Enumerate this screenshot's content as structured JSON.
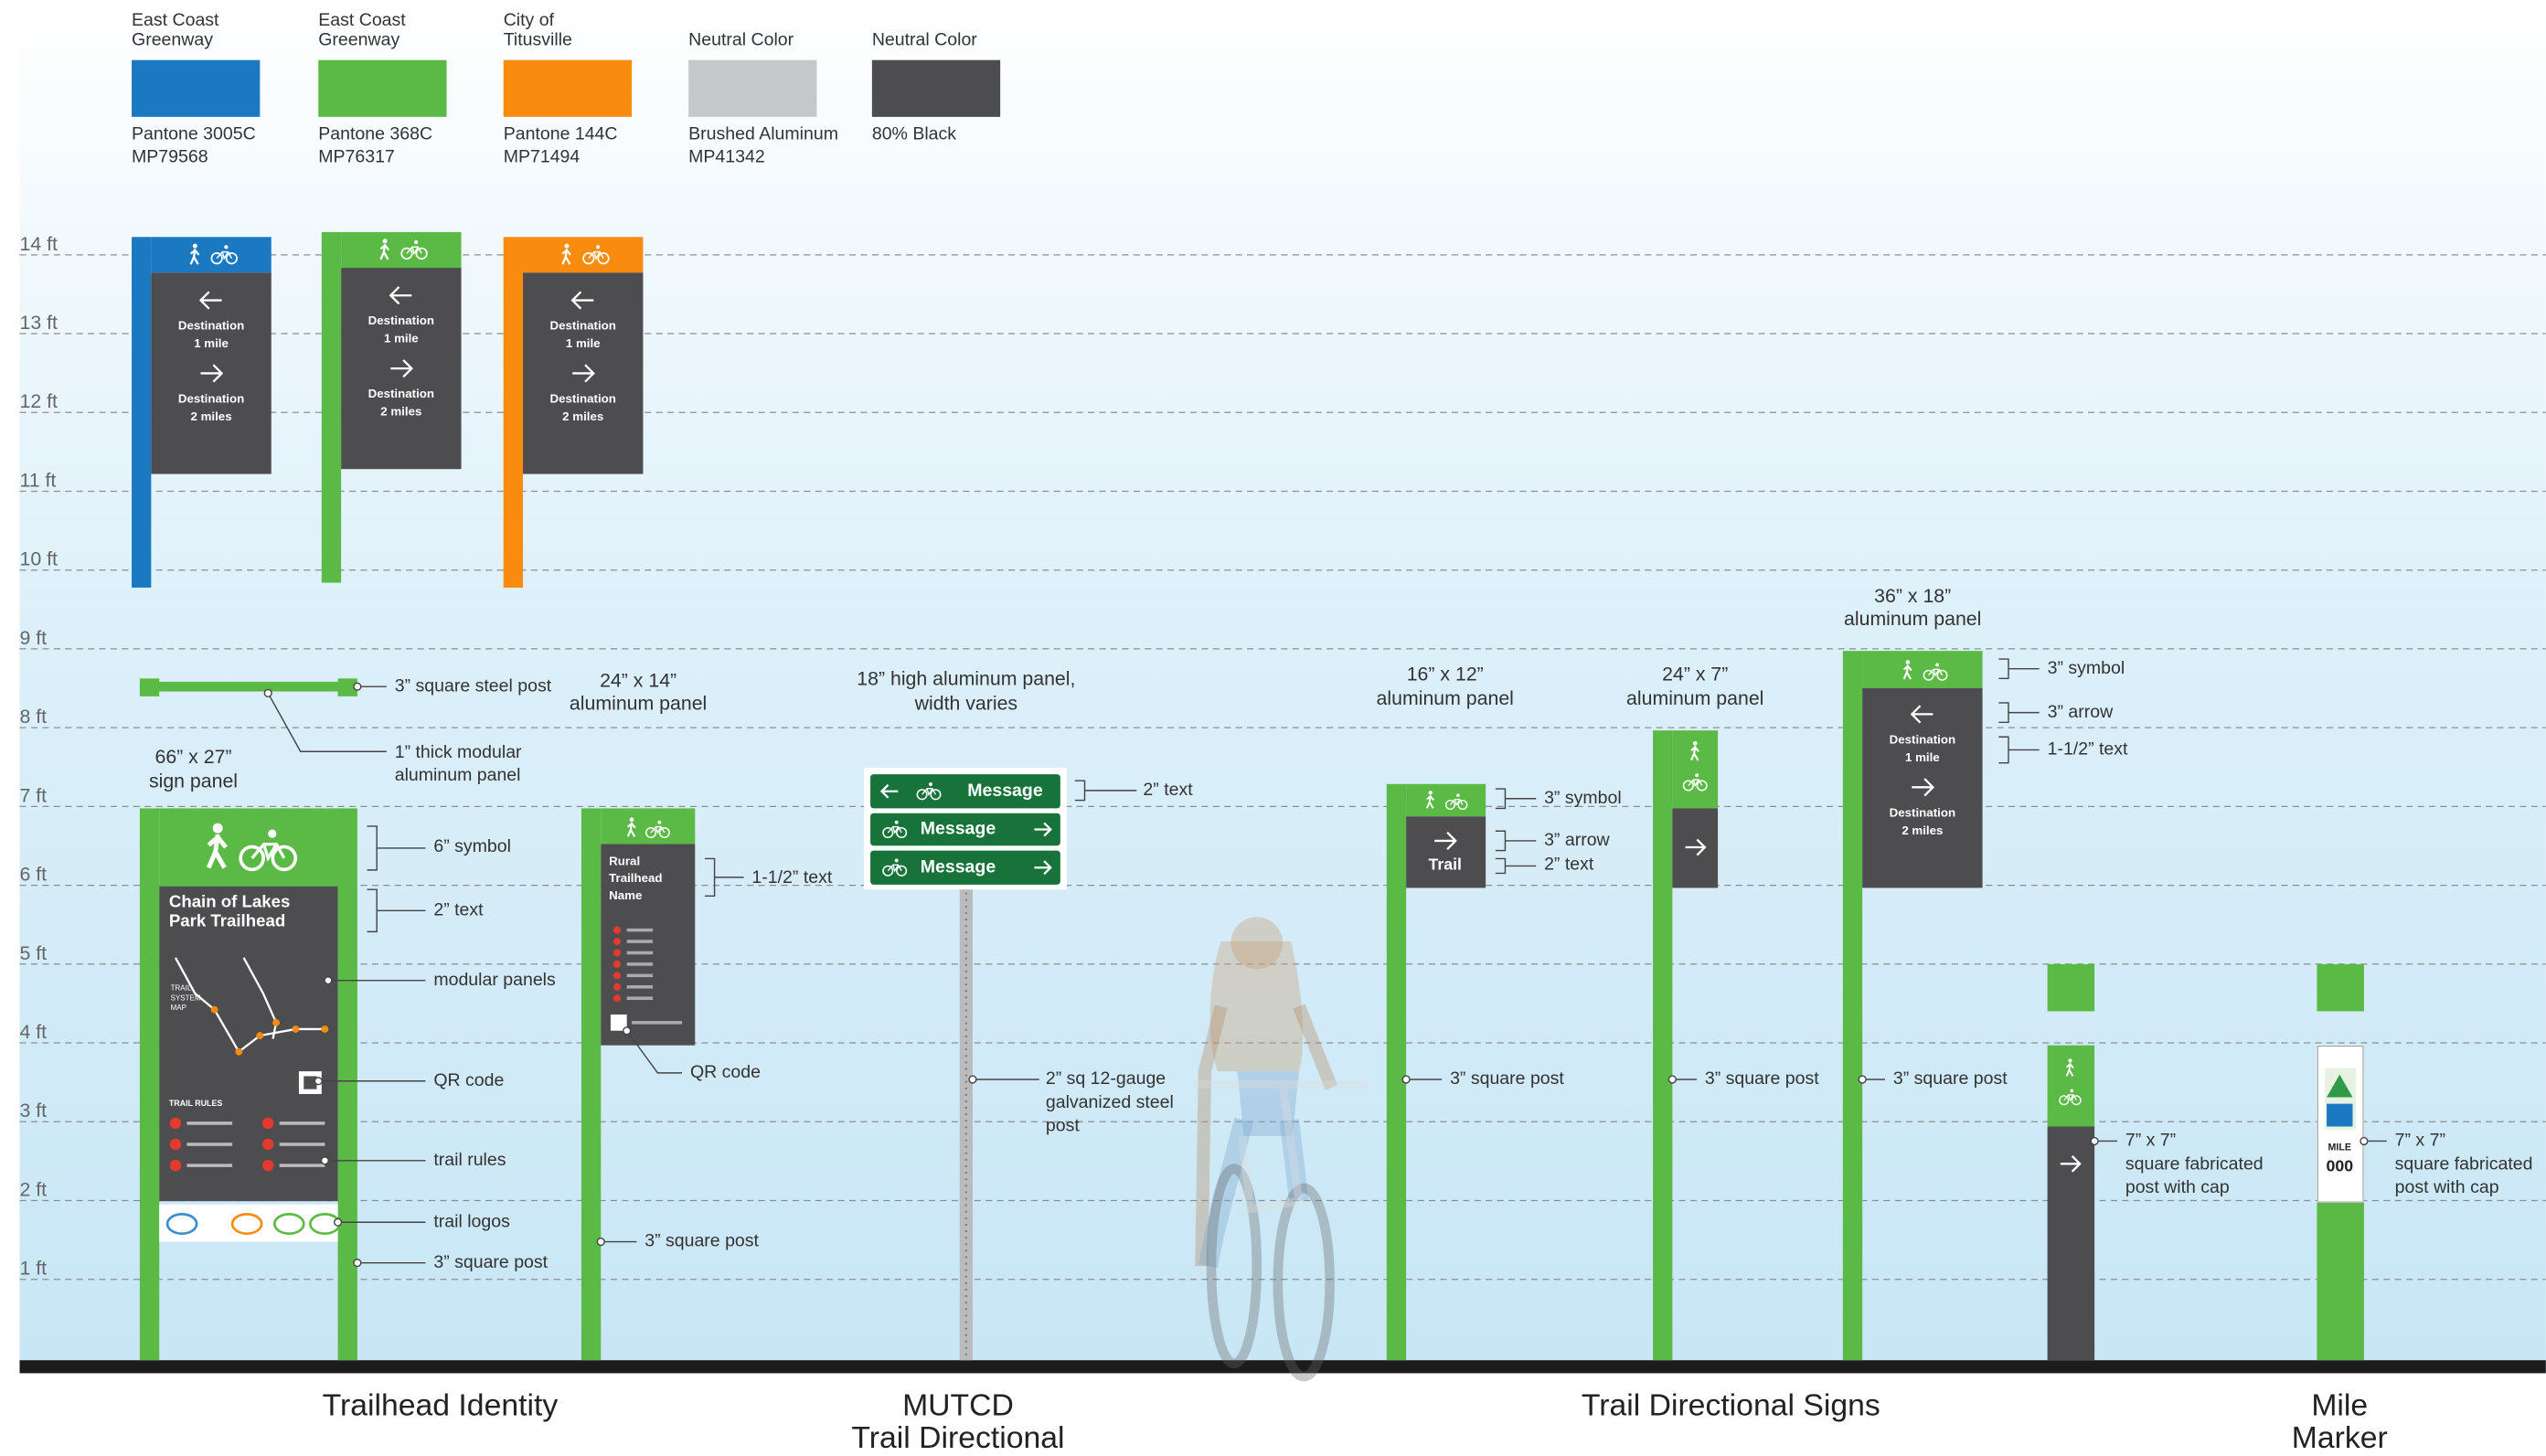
{
  "swatches": [
    {
      "name": [
        "East Coast",
        "Greenway"
      ],
      "spec": [
        "Pantone 3005C",
        "MP79568"
      ],
      "color": "#1b79c1"
    },
    {
      "name": [
        "East Coast",
        "Greenway"
      ],
      "spec": [
        "Pantone 368C",
        "MP76317"
      ],
      "color": "#5bb946"
    },
    {
      "name": [
        "City of",
        "Titusville"
      ],
      "spec": [
        "Pantone 144C",
        "MP71494"
      ],
      "color": "#f98b0f"
    },
    {
      "name": [
        "Neutral Color"
      ],
      "spec": [
        "Brushed Aluminum",
        "MP41342"
      ],
      "color": "#c6c7c9"
    },
    {
      "name": [
        "Neutral Color"
      ],
      "spec": [
        "80% Black"
      ],
      "color": "#4d4d4f"
    }
  ],
  "height_labels": [
    "14 ft",
    "13 ft",
    "12 ft",
    "11 ft",
    "10 ft",
    "9 ft",
    "8 ft",
    "7 ft",
    "6 ft",
    "5 ft",
    "4 ft",
    "3 ft",
    "2 ft",
    "1 ft"
  ],
  "directional_panel": [
    "Destination",
    "1 mile",
    "Destination",
    "2 miles"
  ],
  "trailhead_identity": {
    "title": [
      "Chain of Lakes",
      "Park Trailhead"
    ],
    "map_label": [
      "TRAIL",
      "SYSTEM",
      "MAP"
    ],
    "rules_label": "TRAIL RULES",
    "size": [
      "66” x 27”",
      "sign panel"
    ],
    "callouts": {
      "steel_post": "3” square steel post",
      "modular": [
        "1” thick modular",
        "aluminum panel"
      ],
      "symbol": "6” symbol",
      "text": "2” text",
      "panels": "modular panels",
      "qr": "QR code",
      "rules": "trail rules",
      "logos": "trail logos",
      "post": "3” square post"
    }
  },
  "rural_sign": {
    "name": [
      "Rural",
      "Trailhead",
      "Name"
    ],
    "size": [
      "24” x 14”",
      "aluminum panel"
    ],
    "callouts": {
      "text": "1-1/2” text",
      "qr": "QR code",
      "post": "3” square post"
    }
  },
  "mutcd_sign": {
    "messages": [
      "Message",
      "Message",
      "Message"
    ],
    "size": [
      "18” high aluminum panel,",
      "width varies"
    ],
    "callouts": {
      "text": "2” text",
      "post": [
        "2” sq 12-gauge",
        "galvanized steel",
        "post"
      ]
    }
  },
  "small_directional": {
    "label": "Trail",
    "size": [
      "16” x 12”",
      "aluminum panel"
    ],
    "callouts": {
      "symbol": "3” symbol",
      "arrow": "3” arrow",
      "text": "2” text",
      "post": "3” square post"
    }
  },
  "narrow_directional": {
    "size": [
      "24” x 7”",
      "aluminum panel"
    ],
    "callouts": {
      "post": "3” square post"
    }
  },
  "large_directional": {
    "size": [
      "36” x 18”",
      "aluminum panel"
    ],
    "callouts": {
      "symbol": "3” symbol",
      "arrow": "3” arrow",
      "text": "1-1/2” text",
      "post": "3” square post"
    }
  },
  "mile_markers": {
    "mile_label": "MILE",
    "mile_number": "000",
    "callout": [
      "7” x 7”",
      "square fabricated",
      "post with cap"
    ]
  },
  "sections": [
    [
      "Trailhead Identity"
    ],
    [
      "MUTCD",
      "Trail Directional"
    ],
    [
      "Trail Directional Signs"
    ],
    [
      "Mile",
      "Marker"
    ]
  ]
}
